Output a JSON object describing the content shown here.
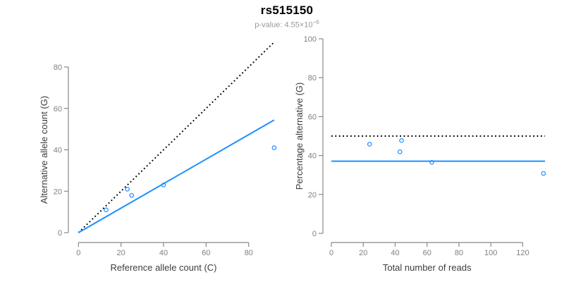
{
  "header": {
    "title": "rs515150",
    "p_value_text": "p-value: 4.55×10",
    "p_value_exponent": "−6"
  },
  "colors": {
    "accent_blue": "#1E90FF",
    "line_black": "#000000",
    "axis_line_gray": "#888888",
    "tick_label_gray": "#808080",
    "axis_title_gray": "#3d3d3d",
    "subtitle_gray": "#9a9a9a"
  },
  "chart_data": [
    {
      "type": "scatter",
      "panel": "allele-counts",
      "xlabel": "Reference allele count (C)",
      "ylabel": "Alternative allele count (G)",
      "x_ticks": [
        0,
        20,
        40,
        60,
        80
      ],
      "y_ticks": [
        0,
        20,
        40,
        60,
        80
      ],
      "xlim": [
        0,
        92
      ],
      "ylim": [
        0,
        92
      ],
      "grid": false,
      "points": [
        [
          13,
          11
        ],
        [
          23,
          21
        ],
        [
          25,
          18
        ],
        [
          40,
          23
        ],
        [
          92,
          41
        ]
      ],
      "lines": [
        {
          "name": "identity-line",
          "style": "dotted",
          "color": "#000000",
          "from": [
            0,
            0
          ],
          "to": [
            92,
            92
          ]
        },
        {
          "name": "fitted-ratio-line",
          "style": "solid",
          "color": "#1E90FF",
          "from": [
            0,
            0
          ],
          "to": [
            92,
            54.4
          ]
        }
      ]
    },
    {
      "type": "scatter",
      "panel": "percentage-vs-reads",
      "xlabel": "Total number of reads",
      "ylabel": "Percentage alternative (G)",
      "x_ticks": [
        0,
        20,
        40,
        60,
        80,
        100,
        120
      ],
      "y_ticks": [
        0,
        20,
        40,
        60,
        80,
        100
      ],
      "xlim": [
        0,
        134
      ],
      "ylim": [
        0,
        100
      ],
      "grid": false,
      "points": [
        [
          24,
          45.8
        ],
        [
          43,
          41.9
        ],
        [
          44,
          47.7
        ],
        [
          63,
          36.5
        ],
        [
          133,
          30.8
        ]
      ],
      "lines": [
        {
          "name": "expected-50pct-line",
          "style": "dotted",
          "color": "#000000",
          "from": [
            0,
            50
          ],
          "to": [
            134,
            50
          ]
        },
        {
          "name": "fitted-percentage-line",
          "style": "solid",
          "color": "#1E90FF",
          "from": [
            0,
            37.1
          ],
          "to": [
            134,
            37.1
          ]
        }
      ]
    }
  ]
}
